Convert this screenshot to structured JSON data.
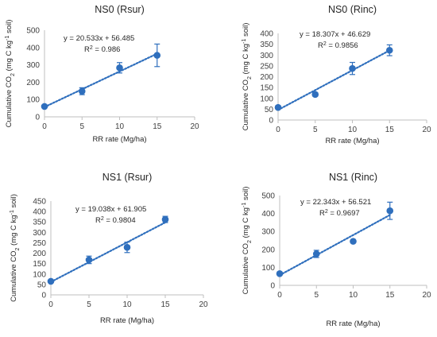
{
  "chart_data": [
    {
      "type": "scatter",
      "title": "NS0 (Rsur)",
      "xlabel": "RR rate (Mg/ha)",
      "ylabel_main": "Cumulative CO",
      "ylabel_sub": "2",
      "ylabel_rest": " (mg C kg",
      "ylabel_sup": "-1",
      "ylabel_end": " soil)",
      "xlim": [
        0,
        20
      ],
      "ylim": [
        0,
        500
      ],
      "xticks": [
        "0",
        "5",
        "10",
        "15",
        "20"
      ],
      "yticks": [
        "0",
        "100",
        "200",
        "300",
        "400",
        "500"
      ],
      "x": [
        0,
        5,
        10,
        15
      ],
      "y": [
        60,
        148,
        283,
        355
      ],
      "yerr": [
        4,
        20,
        30,
        65
      ],
      "trend": {
        "slope": 20.533,
        "intercept": 56.485
      },
      "equation": "y = 20.533x + 56.485",
      "r2_label": "R",
      "r2_sup": "2",
      "r2_value": " = 0.986",
      "color": "#2f6fbd",
      "grid": false
    },
    {
      "type": "scatter",
      "title": "NS0 (Rinc)",
      "xlabel": "RR rate (Mg/ha)",
      "ylabel_main": "Cumulative CO",
      "ylabel_sub": "2",
      "ylabel_rest": " (mg C kg",
      "ylabel_sup": "-1",
      "ylabel_end": " soil)",
      "xlim": [
        0,
        20
      ],
      "ylim": [
        0,
        400
      ],
      "xticks": [
        "0",
        "5",
        "10",
        "15",
        "20"
      ],
      "yticks": [
        "0",
        "50",
        "100",
        "150",
        "200",
        "250",
        "300",
        "350",
        "400"
      ],
      "x": [
        0,
        5,
        10,
        15
      ],
      "y": [
        58,
        118,
        238,
        322
      ],
      "yerr": [
        4,
        8,
        28,
        25
      ],
      "trend": {
        "slope": 18.307,
        "intercept": 46.629
      },
      "equation": "y = 18.307x + 46.629",
      "r2_label": "R",
      "r2_sup": "2",
      "r2_value": " = 0.9856",
      "color": "#2f6fbd",
      "grid": false
    },
    {
      "type": "scatter",
      "title": "NS1 (Rsur)",
      "xlabel": "RR rate (Mg/ha)",
      "ylabel_main": "Cumulative CO",
      "ylabel_sub": "2",
      "ylabel_rest": " (mg C kg",
      "ylabel_sup": "-1",
      "ylabel_end": " soil)",
      "xlim": [
        0,
        20
      ],
      "ylim": [
        0,
        450
      ],
      "xticks": [
        "0",
        "5",
        "10",
        "15",
        "20"
      ],
      "yticks": [
        "0",
        "50",
        "100",
        "150",
        "200",
        "250",
        "300",
        "350",
        "400",
        "450"
      ],
      "x": [
        0,
        5,
        10,
        15
      ],
      "y": [
        65,
        168,
        228,
        362
      ],
      "yerr": [
        4,
        18,
        25,
        15
      ],
      "trend": {
        "slope": 19.038,
        "intercept": 61.905
      },
      "equation": "y = 19.038x + 61.905",
      "r2_label": "R",
      "r2_sup": "2",
      "r2_value": " = 0.9804",
      "color": "#2f6fbd",
      "grid": false
    },
    {
      "type": "scatter",
      "title": "NS1 (Rinc)",
      "xlabel": "RR rate (Mg/ha)",
      "ylabel_main": "Cumulative CO",
      "ylabel_sub": "2",
      "ylabel_rest": " (mg C kg",
      "ylabel_sup": "-1",
      "ylabel_end": " soil)",
      "xlim": [
        0,
        20
      ],
      "ylim": [
        0,
        500
      ],
      "xticks": [
        "0",
        "5",
        "10",
        "15",
        "20"
      ],
      "yticks": [
        "0",
        "100",
        "200",
        "300",
        "400",
        "500"
      ],
      "x": [
        0,
        5,
        10,
        15
      ],
      "y": [
        65,
        175,
        245,
        415
      ],
      "yerr": [
        4,
        20,
        6,
        48
      ],
      "trend": {
        "slope": 22.343,
        "intercept": 56.521
      },
      "equation": "y = 22.343x + 56.521",
      "r2_label": "R",
      "r2_sup": "2",
      "r2_value": " = 0.9697",
      "color": "#2f6fbd",
      "grid": false
    }
  ]
}
